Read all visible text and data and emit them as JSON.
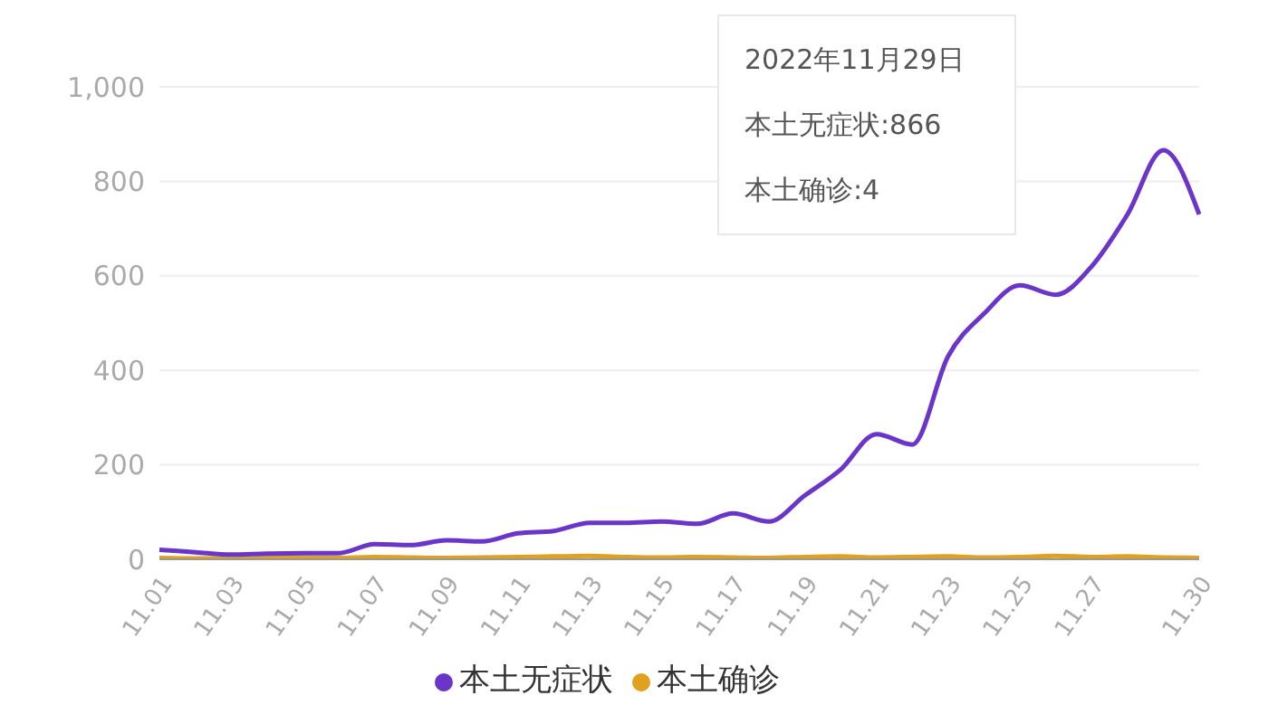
{
  "chart_data": {
    "type": "line",
    "categories": [
      "11.01",
      null,
      "11.03",
      null,
      "11.05",
      null,
      "11.07",
      null,
      "11.09",
      null,
      "11.11",
      null,
      "11.13",
      null,
      "11.15",
      null,
      "11.17",
      null,
      "11.19",
      null,
      "11.21",
      null,
      "11.23",
      null,
      "11.25",
      null,
      "11.27",
      null,
      null,
      "11.30"
    ],
    "series": [
      {
        "name": "本土确诊",
        "color": "#e0a020",
        "values": [
          3,
          2,
          2,
          3,
          4,
          3,
          5,
          4,
          3,
          4,
          5,
          6,
          7,
          5,
          4,
          5,
          4,
          3,
          5,
          6,
          4,
          5,
          6,
          4,
          5,
          7,
          5,
          6,
          4,
          3
        ]
      },
      {
        "name": "本土无症状",
        "color": "#6a35c8",
        "values": [
          20,
          15,
          10,
          12,
          13,
          13,
          32,
          30,
          40,
          38,
          55,
          60,
          77,
          77,
          80,
          75,
          97,
          80,
          135,
          190,
          265,
          243,
          430,
          520,
          580,
          560,
          620,
          730,
          866,
          730
        ]
      }
    ],
    "ylim": [
      0,
      1000
    ],
    "yticks": [
      0,
      200,
      400,
      600,
      800,
      {
        "value": 1000,
        "label": "1,000"
      }
    ],
    "grid": "y",
    "legend": "bottom",
    "marker": "none",
    "line_style": "solid",
    "annotations": [
      "2022年11月29日",
      "本土无症状:866",
      "本土确诊:4"
    ]
  }
}
